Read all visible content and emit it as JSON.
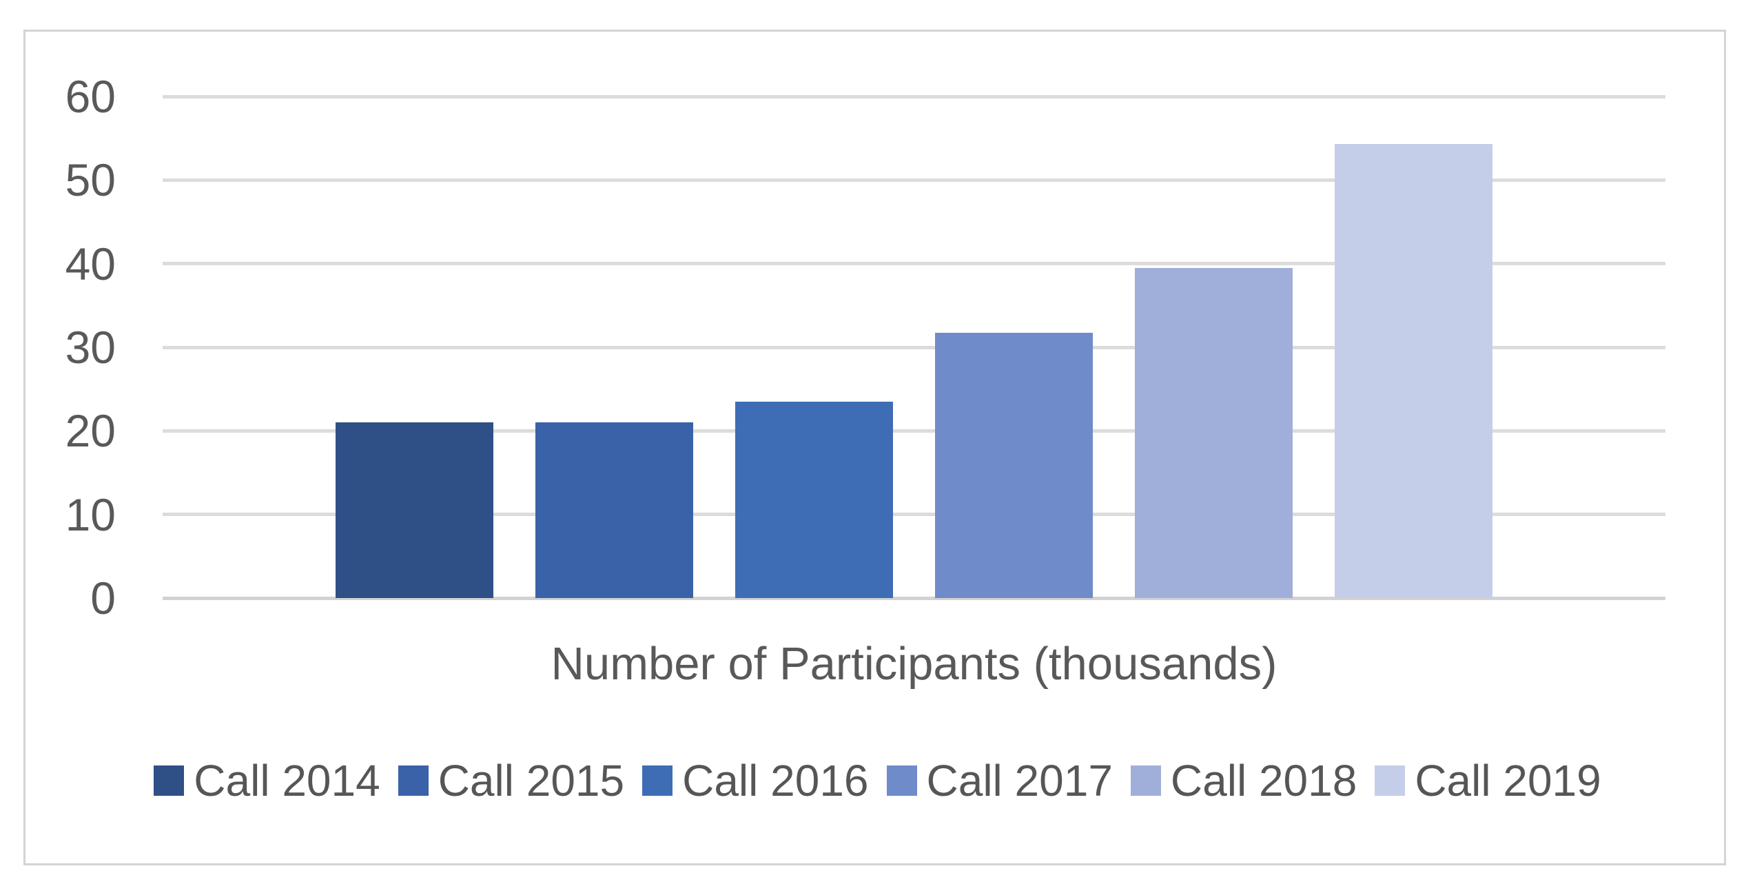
{
  "chart_data": {
    "type": "bar",
    "title": "",
    "xlabel": "Number of Participants (thousands)",
    "ylabel": "",
    "ylim": [
      0,
      60
    ],
    "yticks": [
      0,
      10,
      20,
      30,
      40,
      50,
      60
    ],
    "grid": true,
    "legend_position": "bottom",
    "categories": [
      "Call 2014",
      "Call 2015",
      "Call 2016",
      "Call 2017",
      "Call 2018",
      "Call 2019"
    ],
    "values": [
      21,
      21,
      23.5,
      31.7,
      39.5,
      54.3
    ],
    "colors": [
      "#2E5087",
      "#3A62A8",
      "#3E6DB5",
      "#6F8BCA",
      "#A0AEDA",
      "#C4CEE8"
    ]
  },
  "style_colors": {
    "gridline": "#DCDCDC",
    "zero_line": "#D2D2D2",
    "frame_border": "#D4D4D4",
    "text": "#595959",
    "background": "#FFFFFF"
  }
}
